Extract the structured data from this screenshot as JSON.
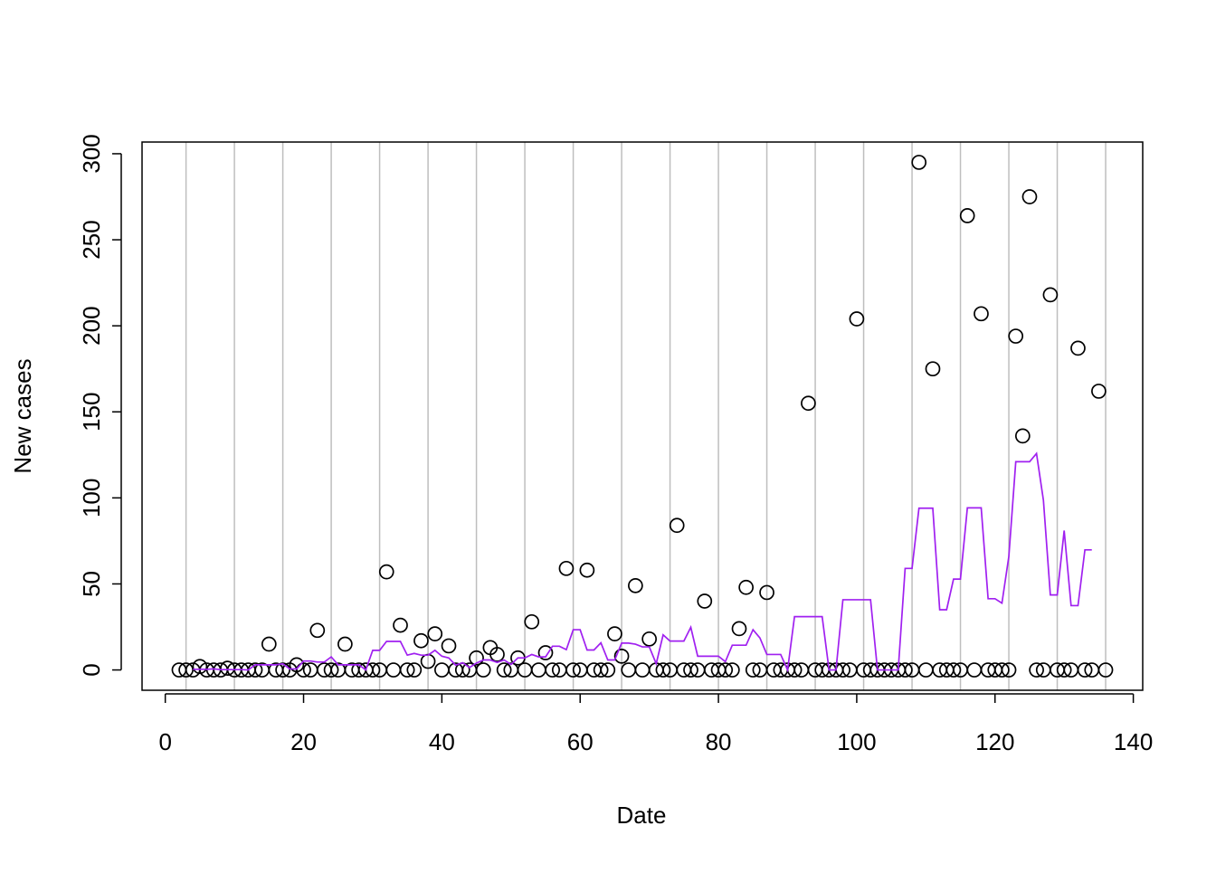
{
  "chart_data": {
    "type": "scatter",
    "xlabel": "Date",
    "ylabel": "New cases",
    "xlim": [
      -3.36,
      141.36
    ],
    "ylim": [
      -11.8,
      306.8
    ],
    "xticks": [
      0,
      20,
      40,
      60,
      80,
      100,
      120,
      140
    ],
    "yticks": [
      0,
      50,
      100,
      150,
      200,
      250,
      300
    ],
    "grid_x": [
      3,
      10,
      17,
      24,
      31,
      38,
      45,
      52,
      59,
      66,
      73,
      80,
      87,
      94,
      101,
      108,
      115,
      122,
      129,
      136
    ],
    "grid_color": "#bebebe",
    "series": [
      {
        "type": "scatter",
        "color": "#000000",
        "x": [
          2,
          3,
          4,
          5,
          6,
          7,
          8,
          9,
          10,
          11,
          12,
          13,
          14,
          15,
          16,
          17,
          18,
          19,
          20,
          21,
          22,
          23,
          24,
          25,
          26,
          27,
          28,
          29,
          30,
          31,
          32,
          33,
          34,
          35,
          36,
          37,
          38,
          39,
          40,
          41,
          42,
          43,
          44,
          45,
          46,
          47,
          48,
          49,
          50,
          51,
          52,
          53,
          54,
          55,
          56,
          57,
          58,
          59,
          60,
          61,
          62,
          63,
          64,
          65,
          66,
          67,
          68,
          69,
          70,
          71,
          72,
          73,
          74,
          75,
          76,
          77,
          78,
          79,
          80,
          81,
          82,
          83,
          84,
          85,
          86,
          87,
          88,
          89,
          90,
          91,
          92,
          93,
          94,
          95,
          96,
          97,
          98,
          99,
          100,
          101,
          102,
          103,
          104,
          105,
          106,
          107,
          108,
          109,
          110,
          111,
          112,
          113,
          114,
          115,
          116,
          117,
          118,
          119,
          120,
          121,
          122,
          123,
          124,
          125,
          126,
          127,
          128,
          129,
          130,
          131,
          132,
          133,
          134,
          135,
          136
        ],
        "values": [
          0,
          0,
          0,
          2,
          0,
          0,
          0,
          1,
          0,
          0,
          0,
          0,
          0,
          15,
          0,
          0,
          0,
          3,
          0,
          0,
          23,
          0,
          0,
          0,
          15,
          0,
          0,
          0,
          0,
          0,
          57,
          0,
          26,
          0,
          0,
          17,
          5,
          21,
          0,
          14,
          0,
          0,
          0,
          7,
          0,
          13,
          9,
          0,
          0,
          7,
          0,
          28,
          0,
          10,
          0,
          0,
          59,
          0,
          0,
          58,
          0,
          0,
          0,
          21,
          8,
          0,
          49,
          0,
          18,
          0,
          0,
          0,
          84,
          0,
          0,
          0,
          40,
          0,
          0,
          0,
          0,
          24,
          48,
          0,
          0,
          45,
          0,
          0,
          0,
          0,
          0,
          155,
          0,
          0,
          0,
          0,
          0,
          0,
          204,
          0,
          0,
          0,
          0,
          0,
          0,
          0,
          0,
          295,
          0,
          175,
          0,
          0,
          0,
          0,
          264,
          0,
          207,
          0,
          0,
          0,
          0,
          194,
          136,
          275,
          0,
          0,
          218,
          0,
          0,
          0,
          187,
          0,
          0,
          162,
          0
        ]
      },
      {
        "type": "line",
        "color": "#a020f0",
        "x": [
          4,
          5,
          6,
          7,
          8,
          9,
          10,
          11,
          12,
          13,
          14,
          15,
          16,
          17,
          18,
          19,
          20,
          21,
          22,
          23,
          24,
          25,
          26,
          27,
          28,
          29,
          30,
          31,
          32,
          33,
          34,
          35,
          36,
          37,
          38,
          39,
          40,
          41,
          42,
          43,
          44,
          45,
          46,
          47,
          48,
          49,
          50,
          51,
          52,
          53,
          54,
          55,
          56,
          57,
          58,
          59,
          60,
          61,
          62,
          63,
          64,
          65,
          66,
          67,
          68,
          69,
          70,
          71,
          72,
          73,
          74,
          75,
          76,
          77,
          78,
          79,
          80,
          81,
          82,
          83,
          84,
          85,
          86,
          87,
          88,
          89,
          90,
          91,
          92,
          93,
          94,
          95,
          96,
          97,
          98,
          99,
          100,
          101,
          102,
          103,
          104,
          105,
          106,
          107,
          108,
          109,
          110,
          111,
          112,
          113,
          114,
          115,
          116,
          117,
          118,
          119,
          120,
          121,
          122,
          123,
          124,
          125,
          126,
          127,
          128,
          129,
          130,
          131,
          132,
          133,
          134
        ],
        "values": [
          0.4,
          0.4,
          0.4,
          0.6,
          0.2,
          0.2,
          0.2,
          0.2,
          0,
          3,
          3,
          3,
          3,
          3.6,
          0.6,
          0.6,
          5.2,
          5.2,
          4.6,
          4.6,
          7.6,
          3,
          3,
          3,
          3,
          0,
          11.4,
          11.4,
          16.6,
          16.6,
          16.6,
          8.6,
          9.6,
          8.6,
          8.6,
          11.4,
          8,
          7,
          2.8,
          4.2,
          1.4,
          4,
          5.8,
          5.8,
          4.4,
          5.8,
          3.2,
          7,
          7,
          9,
          7.6,
          7.6,
          13.8,
          13.8,
          11.8,
          23.4,
          23.4,
          11.6,
          11.6,
          15.8,
          5.8,
          5.8,
          15.6,
          15.6,
          15,
          13.4,
          13.4,
          3.6,
          20.4,
          16.8,
          16.8,
          16.8,
          24.8,
          8,
          8,
          8,
          8,
          4.8,
          14.4,
          14.4,
          14.4,
          23.4,
          18.6,
          9,
          9,
          9,
          0,
          31,
          31,
          31,
          31,
          31,
          0,
          0,
          40.8,
          40.8,
          40.8,
          40.8,
          40.8,
          0,
          0,
          0,
          0,
          59,
          59,
          94,
          94,
          94,
          35,
          35,
          52.8,
          52.8,
          94.2,
          94.2,
          94.2,
          41.4,
          41.4,
          38.8,
          66,
          121,
          121,
          121,
          125.8,
          98.6,
          43.6,
          43.6,
          81,
          37.4,
          37.4,
          69.8,
          69.8
        ]
      }
    ]
  }
}
